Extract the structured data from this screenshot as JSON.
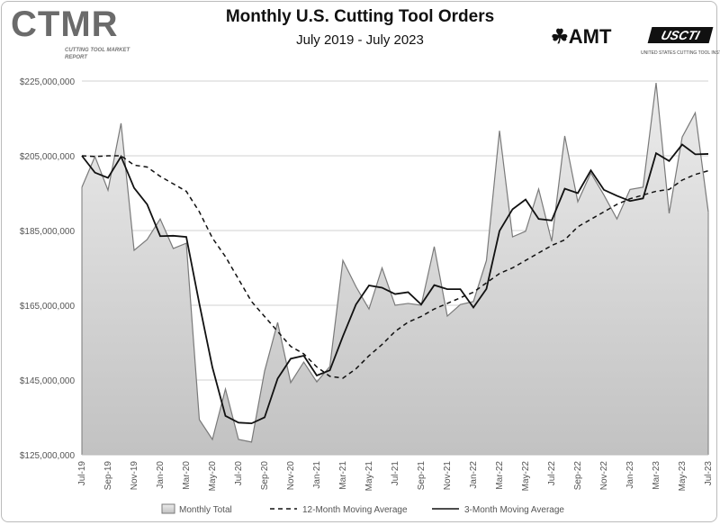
{
  "header": {
    "title": "Monthly U.S. Cutting Tool Orders",
    "subtitle": "July 2019 - July 2023",
    "logo_left": "CTMR",
    "logo_left_sub": "CUTTING TOOL MARKET REPORT",
    "logo_right_amt": "AMT",
    "logo_right_usc": "USCTI",
    "logo_right_usc_sub": "UNITED STATES CUTTING TOOL INSTITUTE"
  },
  "colors": {
    "fill_top": "#ececec",
    "fill_bottom": "#c2c2c2",
    "area_line": "#7a7a7a",
    "ma": "#111111",
    "grid": "#d0d0d0"
  },
  "chart_data": {
    "type": "area",
    "title": "Monthly U.S. Cutting Tool Orders",
    "subtitle": "July 2019 - July 2023",
    "xlabel": "",
    "ylabel": "",
    "ylim": [
      125000000,
      225000000
    ],
    "yticks": [
      125000000,
      145000000,
      165000000,
      185000000,
      205000000,
      225000000
    ],
    "ytick_labels": [
      "$125,000,000",
      "$145,000,000",
      "$165,000,000",
      "$185,000,000",
      "$205,000,000",
      "$225,000,000"
    ],
    "grid": true,
    "legend_position": "bottom",
    "x": [
      "Jul-19",
      "Aug-19",
      "Sep-19",
      "Oct-19",
      "Nov-19",
      "Dec-19",
      "Jan-20",
      "Feb-20",
      "Mar-20",
      "Apr-20",
      "May-20",
      "Jun-20",
      "Jul-20",
      "Aug-20",
      "Sep-20",
      "Oct-20",
      "Nov-20",
      "Dec-20",
      "Jan-21",
      "Feb-21",
      "Mar-21",
      "Apr-21",
      "May-21",
      "Jun-21",
      "Jul-21",
      "Aug-21",
      "Sep-21",
      "Oct-21",
      "Nov-21",
      "Dec-21",
      "Jan-22",
      "Feb-22",
      "Mar-22",
      "Apr-22",
      "May-22",
      "Jun-22",
      "Jul-22",
      "Aug-22",
      "Sep-22",
      "Oct-22",
      "Nov-22",
      "Dec-22",
      "Jan-23",
      "Feb-23",
      "Mar-23",
      "Apr-23",
      "May-23",
      "Jun-23",
      "Jul-23"
    ],
    "xtick_labels": [
      "Jul-19",
      "Sep-19",
      "Nov-19",
      "Jan-20",
      "Mar-20",
      "May-20",
      "Jul-20",
      "Sep-20",
      "Nov-20",
      "Jan-21",
      "Mar-21",
      "May-21",
      "Jul-21",
      "Sep-21",
      "Nov-21",
      "Jan-22",
      "Mar-22",
      "May-22",
      "Jul-22",
      "Sep-22",
      "Nov-22",
      "Jan-23",
      "Mar-23",
      "May-23",
      "Jul-23"
    ],
    "series": [
      {
        "name": "Monthly Total",
        "style": "area",
        "unit": "millions USD",
        "values": [
          196.6,
          204.8,
          195.8,
          213.7,
          179.7,
          182.6,
          188.1,
          180.2,
          181.6,
          134.4,
          129.1,
          142.6,
          129.1,
          128.4,
          147.4,
          160.4,
          144.3,
          149.8,
          144.5,
          148.6,
          177.0,
          170.0,
          164.0,
          175.0,
          165.0,
          165.5,
          165.0,
          180.7,
          162.1,
          165.2,
          166.0,
          177.0,
          211.7,
          183.3,
          184.8,
          196.1,
          182.1,
          210.3,
          192.7,
          200.4,
          194.5,
          188.1,
          196.0,
          196.6,
          224.5,
          189.6,
          210.0,
          216.5,
          190.0
        ]
      },
      {
        "name": "12-Month Moving Average",
        "style": "dashed",
        "unit": "millions USD",
        "values": [
          205,
          204.8,
          205,
          205,
          202.5,
          202,
          199.5,
          197.5,
          195.5,
          190,
          183,
          178,
          172,
          166,
          162,
          158,
          154,
          152,
          148.5,
          146,
          145.5,
          148,
          151.5,
          154.5,
          158,
          160.5,
          162,
          164,
          165.5,
          167,
          168.5,
          171,
          173.5,
          175,
          177,
          179,
          181,
          182.5,
          186,
          188,
          190,
          192,
          193.5,
          194.5,
          195.5,
          196,
          198.5,
          200,
          201
        ]
      },
      {
        "name": "3-Month Moving Average",
        "style": "solid",
        "unit": "millions USD",
        "values": [
          205,
          200.5,
          199.1,
          204.8,
          196.4,
          192.0,
          183.5,
          183.6,
          183.3,
          165.4,
          148.4,
          135.4,
          133.6,
          133.4,
          135.0,
          145.4,
          150.7,
          151.5,
          146.2,
          147.6,
          156.7,
          165.2,
          170.3,
          169.7,
          168.0,
          168.5,
          165.2,
          170.4,
          169.3,
          169.3,
          164.4,
          169.4,
          184.9,
          190.7,
          193.3,
          188.1,
          187.7,
          196.2,
          195.0,
          201.1,
          195.9,
          194.3,
          192.9,
          193.6,
          205.7,
          203.6,
          208.0,
          205.4,
          205.5
        ]
      }
    ]
  }
}
